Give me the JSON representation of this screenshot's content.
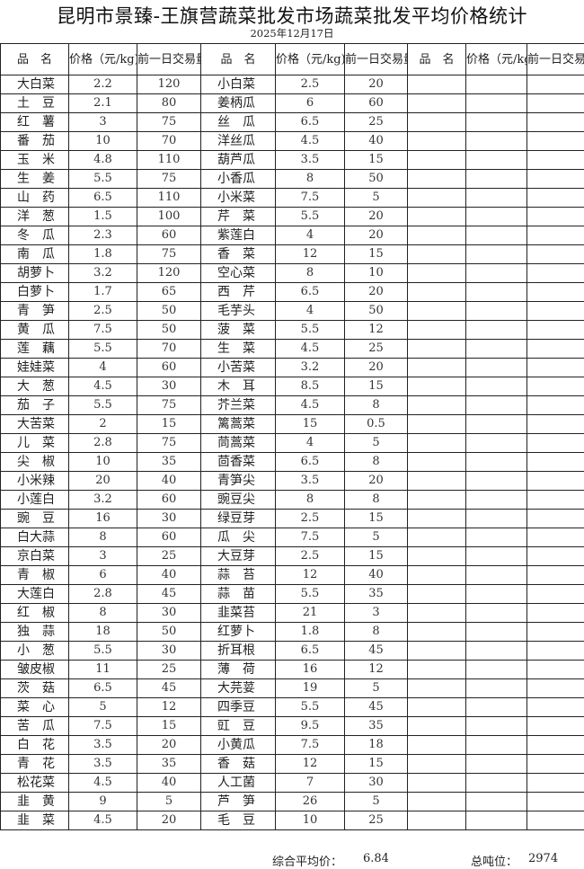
{
  "title": "昆明市景臻-王旗营蔬菜批发市场蔬菜批发平均价格统计",
  "date": "2025年12月17日",
  "headers": {
    "name": "品　名",
    "price": "价格（元/kg)",
    "volume": "前一日交易量(吨)"
  },
  "rows": [
    [
      [
        "大白菜",
        "2.2",
        "120"
      ],
      [
        "小白菜",
        "2.5",
        "20"
      ]
    ],
    [
      [
        "土豆",
        "2.1",
        "80"
      ],
      [
        "姜柄瓜",
        "6",
        "60"
      ]
    ],
    [
      [
        "红薯",
        "3",
        "75"
      ],
      [
        "丝瓜",
        "6.5",
        "25"
      ]
    ],
    [
      [
        "番茄",
        "10",
        "70"
      ],
      [
        "洋丝瓜",
        "4.5",
        "40"
      ]
    ],
    [
      [
        "玉米",
        "4.8",
        "110"
      ],
      [
        "葫芦瓜",
        "3.5",
        "15"
      ]
    ],
    [
      [
        "生姜",
        "5.5",
        "75"
      ],
      [
        "小香瓜",
        "8",
        "50"
      ]
    ],
    [
      [
        "山药",
        "6.5",
        "110"
      ],
      [
        "小米菜",
        "7.5",
        "5"
      ]
    ],
    [
      [
        "洋葱",
        "1.5",
        "100"
      ],
      [
        "芹菜",
        "5.5",
        "20"
      ]
    ],
    [
      [
        "冬瓜",
        "2.3",
        "60"
      ],
      [
        "紫莲白",
        "4",
        "20"
      ]
    ],
    [
      [
        "南瓜",
        "1.8",
        "75"
      ],
      [
        "香菜",
        "12",
        "15"
      ]
    ],
    [
      [
        "胡萝卜",
        "3.2",
        "120"
      ],
      [
        "空心菜",
        "8",
        "10"
      ]
    ],
    [
      [
        "白萝卜",
        "1.7",
        "65"
      ],
      [
        "西芹",
        "6.5",
        "20"
      ]
    ],
    [
      [
        "青笋",
        "2.5",
        "50"
      ],
      [
        "毛芋头",
        "4",
        "50"
      ]
    ],
    [
      [
        "黄瓜",
        "7.5",
        "50"
      ],
      [
        "菠菜",
        "5.5",
        "12"
      ]
    ],
    [
      [
        "莲藕",
        "5.5",
        "70"
      ],
      [
        "生菜",
        "4.5",
        "25"
      ]
    ],
    [
      [
        "娃娃菜",
        "4",
        "60"
      ],
      [
        "小苦菜",
        "3.2",
        "20"
      ]
    ],
    [
      [
        "大葱",
        "4.5",
        "30"
      ],
      [
        "木耳",
        "8.5",
        "15"
      ]
    ],
    [
      [
        "茄子",
        "5.5",
        "75"
      ],
      [
        "芥兰菜",
        "4.5",
        "8"
      ]
    ],
    [
      [
        "大苦菜",
        "2",
        "15"
      ],
      [
        "篱蒿菜",
        "15",
        "0.5"
      ]
    ],
    [
      [
        "儿菜",
        "2.8",
        "75"
      ],
      [
        "茼蒿菜",
        "4",
        "5"
      ]
    ],
    [
      [
        "尖椒",
        "10",
        "35"
      ],
      [
        "茴香菜",
        "6.5",
        "8"
      ]
    ],
    [
      [
        "小米辣",
        "20",
        "40"
      ],
      [
        "青笋尖",
        "3.5",
        "20"
      ]
    ],
    [
      [
        "小莲白",
        "3.2",
        "60"
      ],
      [
        "豌豆尖",
        "8",
        "8"
      ]
    ],
    [
      [
        "豌豆",
        "16",
        "30"
      ],
      [
        "绿豆芽",
        "2.5",
        "15"
      ]
    ],
    [
      [
        "白大蒜",
        "8",
        "60"
      ],
      [
        "瓜尖",
        "7.5",
        "5"
      ]
    ],
    [
      [
        "京白菜",
        "3",
        "25"
      ],
      [
        "大豆芽",
        "2.5",
        "15"
      ]
    ],
    [
      [
        "青椒",
        "6",
        "40"
      ],
      [
        "蒜苔",
        "12",
        "40"
      ]
    ],
    [
      [
        "大莲白",
        "2.8",
        "45"
      ],
      [
        "蒜苗",
        "5.5",
        "35"
      ]
    ],
    [
      [
        "红椒",
        "8",
        "30"
      ],
      [
        "韭菜苔",
        "21",
        "3"
      ]
    ],
    [
      [
        "独蒜",
        "18",
        "50"
      ],
      [
        "红萝卜",
        "1.8",
        "8"
      ]
    ],
    [
      [
        "小葱",
        "5.5",
        "30"
      ],
      [
        "折耳根",
        "6.5",
        "45"
      ]
    ],
    [
      [
        "皱皮椒",
        "11",
        "25"
      ],
      [
        "薄荷",
        "16",
        "12"
      ]
    ],
    [
      [
        "茨菇",
        "6.5",
        "45"
      ],
      [
        "大芫荽",
        "19",
        "5"
      ]
    ],
    [
      [
        "菜心",
        "5",
        "12"
      ],
      [
        "四季豆",
        "5.5",
        "45"
      ]
    ],
    [
      [
        "苦瓜",
        "7.5",
        "15"
      ],
      [
        "豇豆",
        "9.5",
        "35"
      ]
    ],
    [
      [
        "白花",
        "3.5",
        "20"
      ],
      [
        "小黄瓜",
        "7.5",
        "18"
      ]
    ],
    [
      [
        "青花",
        "3.5",
        "35"
      ],
      [
        "香菇",
        "12",
        "15"
      ]
    ],
    [
      [
        "松花菜",
        "4.5",
        "40"
      ],
      [
        "人工菌",
        "7",
        "30"
      ]
    ],
    [
      [
        "韭黄",
        "9",
        "5"
      ],
      [
        "芦笋",
        "26",
        "5"
      ]
    ],
    [
      [
        "韭菜",
        "4.5",
        "20"
      ],
      [
        "毛豆",
        "10",
        "25"
      ]
    ]
  ],
  "footer": {
    "avg_label": "综合平均价：",
    "avg_value": "6.84",
    "total_label": "总吨位：",
    "total_value": "2974"
  }
}
